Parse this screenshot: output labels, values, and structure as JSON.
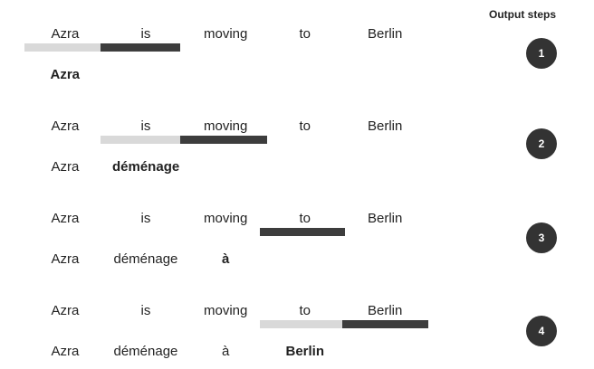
{
  "header": {
    "steps_title": "Output steps"
  },
  "colors": {
    "bar_dark": "#3d3d3d",
    "bar_light": "#d9d9d9",
    "circle": "#333333",
    "text": "#222222"
  },
  "source_words": [
    "Azra",
    "is",
    "moving",
    "to",
    "Berlin"
  ],
  "steps": [
    {
      "number": "1",
      "attention": [
        {
          "token": 0,
          "level": "light"
        },
        {
          "token": 1,
          "level": "dark"
        }
      ],
      "output": [
        {
          "text": "Azra",
          "bold": true
        }
      ]
    },
    {
      "number": "2",
      "attention": [
        {
          "token": 1,
          "level": "light"
        },
        {
          "token": 2,
          "level": "dark"
        }
      ],
      "output": [
        {
          "text": "Azra",
          "bold": false
        },
        {
          "text": "déménage",
          "bold": true
        }
      ]
    },
    {
      "number": "3",
      "attention": [
        {
          "token": 3,
          "level": "dark"
        }
      ],
      "output": [
        {
          "text": "Azra",
          "bold": false
        },
        {
          "text": "déménage",
          "bold": false
        },
        {
          "text": "à",
          "bold": true
        }
      ]
    },
    {
      "number": "4",
      "attention": [
        {
          "token": 3,
          "level": "light"
        },
        {
          "token": 4,
          "level": "dark"
        }
      ],
      "output": [
        {
          "text": "Azra",
          "bold": false
        },
        {
          "text": "déménage",
          "bold": false
        },
        {
          "text": "à",
          "bold": false
        },
        {
          "text": "Berlin",
          "bold": true
        }
      ]
    }
  ]
}
